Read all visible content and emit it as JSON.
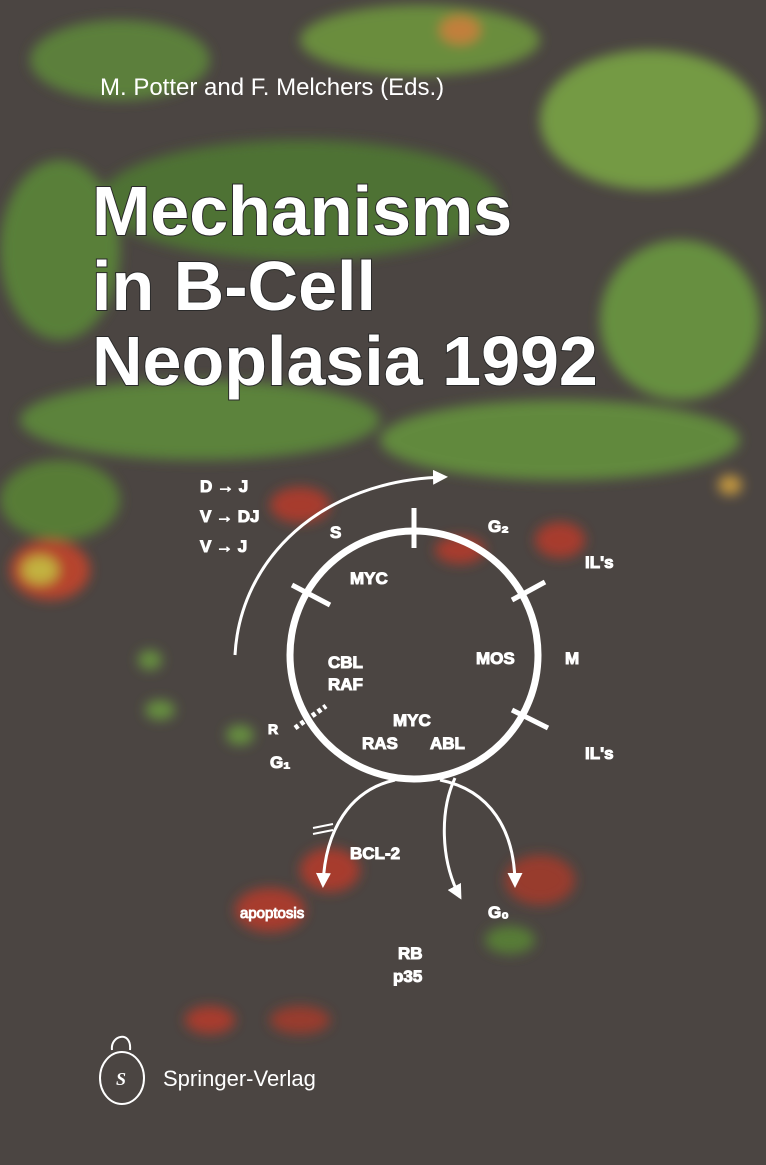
{
  "cover": {
    "editors": "M. Potter and F. Melchers (Eds.)",
    "title": [
      "Mechanisms",
      "in B-Cell",
      "Neoplasia 1992"
    ],
    "diagram": {
      "labels": [
        "D → J",
        "V → DJ",
        "V → J",
        "S",
        "G₂",
        "IL's",
        "MYC",
        "MOS",
        "M",
        "CBL",
        "RAF",
        "R",
        "MYC",
        "RAS",
        "ABL",
        "IL's",
        "G₁",
        "BCL-2",
        "apoptosis",
        "G₀",
        "RB",
        "p35"
      ]
    },
    "publisher": "Springer-Verlag"
  }
}
